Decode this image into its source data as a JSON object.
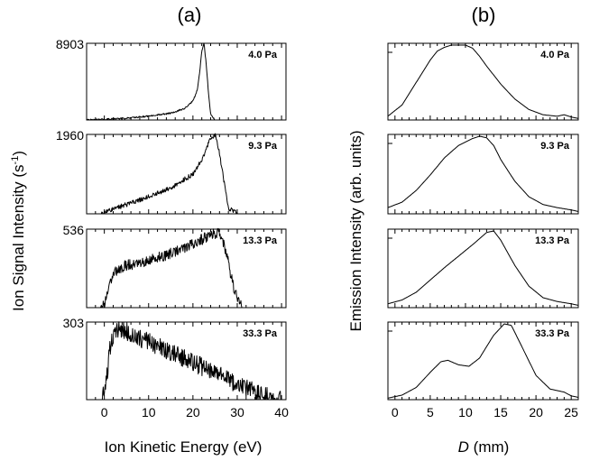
{
  "colors": {
    "line": "#000000",
    "background": "#ffffff"
  },
  "chart_data": [
    {
      "type": "line",
      "panel_label": "(a)",
      "xlabel": "Ion Kinetic Energy (eV)",
      "ylabel_main": "Ion Signal Intensity (s",
      "ylabel_sup": "-1",
      "ylabel_close": ")",
      "xlim": [
        -4,
        41
      ],
      "x_ticks": [
        "0",
        "10",
        "20",
        "30",
        "40"
      ],
      "x_tick_values": [
        0,
        10,
        20,
        30,
        40
      ],
      "subplots": [
        {
          "label": "4.0 Pa",
          "peak_label": "8903",
          "peak": 8903,
          "noise": 0.01,
          "x": [
            -4,
            0,
            5,
            10,
            15,
            18,
            20,
            21,
            21.5,
            22,
            22.5,
            23,
            23.5,
            24,
            25,
            27,
            41
          ],
          "y": [
            0,
            80,
            200,
            450,
            800,
            1300,
            2200,
            3500,
            5500,
            8000,
            8903,
            6500,
            3200,
            700,
            0,
            0,
            0
          ]
        },
        {
          "label": "9.3 Pa",
          "peak_label": "1960",
          "peak": 1960,
          "noise": 0.03,
          "x": [
            -4,
            -1,
            0,
            2,
            5,
            10,
            15,
            20,
            22,
            23,
            24,
            25,
            26,
            27,
            28,
            30,
            41
          ],
          "y": [
            0,
            0,
            50,
            120,
            230,
            420,
            640,
            980,
            1320,
            1600,
            1860,
            1960,
            1500,
            800,
            150,
            0,
            0
          ]
        },
        {
          "label": "13.3 Pa",
          "peak_label": "536",
          "peak": 536,
          "noise": 0.07,
          "x": [
            -4,
            -1,
            0,
            1,
            2,
            5,
            10,
            15,
            20,
            24,
            26,
            27,
            28,
            29,
            30,
            31,
            41
          ],
          "y": [
            0,
            0,
            30,
            150,
            240,
            290,
            320,
            370,
            430,
            500,
            510,
            440,
            310,
            160,
            60,
            0,
            0
          ]
        },
        {
          "label": "33.3 Pa",
          "peak_label": "303",
          "peak": 303,
          "noise": 0.12,
          "x": [
            -4,
            -0.5,
            0.5,
            1.5,
            2.5,
            5,
            10,
            15,
            20,
            25,
            30,
            35,
            38,
            40,
            41
          ],
          "y": [
            0,
            0,
            80,
            230,
            280,
            265,
            225,
            185,
            145,
            105,
            60,
            22,
            6,
            0,
            0
          ]
        }
      ]
    },
    {
      "type": "line",
      "panel_label": "(b)",
      "xlabel_var": "D",
      "xlabel_unit": " (mm)",
      "ylabel": "Emission Intensity (arb. units)",
      "xlim": [
        -1,
        26
      ],
      "x_ticks": [
        "0",
        "5",
        "10",
        "15",
        "20",
        "25"
      ],
      "x_tick_values": [
        0,
        5,
        10,
        15,
        20,
        25
      ],
      "subplots": [
        {
          "label": "4.0 Pa",
          "x": [
            -1,
            1,
            3,
            5,
            6,
            7,
            8,
            10,
            11,
            12,
            13,
            15,
            17,
            19,
            21,
            23,
            24,
            25,
            26
          ],
          "y": [
            0.05,
            0.2,
            0.5,
            0.8,
            0.92,
            0.97,
            1.0,
            1.0,
            0.96,
            0.85,
            0.72,
            0.48,
            0.28,
            0.14,
            0.07,
            0.05,
            0.07,
            0.04,
            0.02
          ]
        },
        {
          "label": "9.3 Pa",
          "x": [
            -1,
            1,
            3,
            5,
            7,
            9,
            11,
            12,
            13,
            14,
            15,
            17,
            19,
            21,
            23,
            25,
            26
          ],
          "y": [
            0.08,
            0.15,
            0.3,
            0.5,
            0.72,
            0.88,
            0.97,
            1.0,
            0.98,
            0.88,
            0.7,
            0.42,
            0.22,
            0.12,
            0.08,
            0.05,
            0.03
          ]
        },
        {
          "label": "13.3 Pa",
          "x": [
            -1,
            1,
            3,
            5,
            7,
            9,
            11,
            12,
            13,
            14,
            15,
            17,
            19,
            21,
            23,
            25,
            26
          ],
          "y": [
            0.05,
            0.1,
            0.2,
            0.36,
            0.52,
            0.67,
            0.82,
            0.9,
            0.98,
            1.0,
            0.88,
            0.55,
            0.28,
            0.13,
            0.08,
            0.05,
            0.03
          ]
        },
        {
          "label": "33.3 Pa",
          "x": [
            -1,
            1,
            3,
            5,
            6.5,
            7.5,
            9,
            10.5,
            12,
            14,
            15.5,
            16.5,
            18,
            20,
            22,
            24,
            25,
            26
          ],
          "y": [
            0.02,
            0.06,
            0.16,
            0.36,
            0.5,
            0.52,
            0.46,
            0.44,
            0.55,
            0.85,
            1.0,
            0.98,
            0.7,
            0.32,
            0.14,
            0.1,
            0.05,
            0.03
          ]
        }
      ]
    }
  ]
}
